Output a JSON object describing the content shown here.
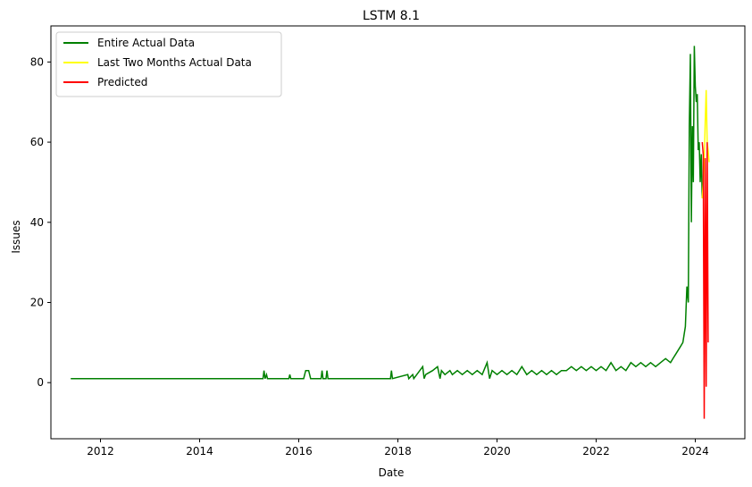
{
  "chart_data": {
    "type": "line",
    "title": "LSTM 8.1",
    "xlabel": "Date",
    "ylabel": "Issues",
    "xlim": [
      2011.0,
      2025.0
    ],
    "ylim": [
      -14,
      89
    ],
    "xticks": [
      2012,
      2014,
      2016,
      2018,
      2020,
      2022,
      2024
    ],
    "xtick_labels": [
      "2012",
      "2014",
      "2016",
      "2018",
      "2020",
      "2022",
      "2024"
    ],
    "yticks": [
      0,
      20,
      40,
      60,
      80
    ],
    "ytick_labels": [
      "0",
      "20",
      "40",
      "60",
      "80"
    ],
    "grid": false,
    "legend_position": "top-left",
    "series": [
      {
        "name": "Entire Actual Data",
        "color": "#008000",
        "x": [
          2011.4,
          2015.28,
          2015.3,
          2015.32,
          2015.35,
          2015.37,
          2015.8,
          2015.82,
          2015.84,
          2016.1,
          2016.14,
          2016.2,
          2016.24,
          2016.45,
          2016.47,
          2016.49,
          2016.55,
          2016.57,
          2016.59,
          2017.85,
          2017.87,
          2017.89,
          2018.2,
          2018.22,
          2018.3,
          2018.32,
          2018.5,
          2018.53,
          2018.56,
          2018.7,
          2018.8,
          2018.85,
          2018.88,
          2018.95,
          2019.05,
          2019.1,
          2019.2,
          2019.3,
          2019.4,
          2019.5,
          2019.6,
          2019.7,
          2019.8,
          2019.85,
          2019.9,
          2020.0,
          2020.1,
          2020.2,
          2020.3,
          2020.4,
          2020.5,
          2020.6,
          2020.7,
          2020.8,
          2020.9,
          2021.0,
          2021.1,
          2021.2,
          2021.3,
          2021.4,
          2021.5,
          2021.6,
          2021.7,
          2021.8,
          2021.9,
          2022.0,
          2022.1,
          2022.2,
          2022.3,
          2022.4,
          2022.5,
          2022.6,
          2022.7,
          2022.8,
          2022.9,
          2023.0,
          2023.1,
          2023.2,
          2023.3,
          2023.4,
          2023.5,
          2023.55,
          2023.6,
          2023.65,
          2023.7,
          2023.75,
          2023.8,
          2023.83,
          2023.86,
          2023.88,
          2023.9,
          2023.92,
          2023.94,
          2023.96,
          2023.98,
          2024.0,
          2024.02,
          2024.04,
          2024.06,
          2024.08,
          2024.1,
          2024.12,
          2024.14
        ],
        "y": [
          1,
          1,
          3,
          1,
          2,
          1,
          1,
          2,
          1,
          1,
          3,
          3,
          1,
          1,
          3,
          1,
          1,
          3,
          1,
          1,
          3,
          1,
          2,
          1,
          2,
          1,
          4,
          1,
          2,
          3,
          4,
          1,
          3,
          2,
          3,
          2,
          3,
          2,
          3,
          2,
          3,
          2,
          5,
          1,
          3,
          2,
          3,
          2,
          3,
          2,
          4,
          2,
          3,
          2,
          3,
          2,
          3,
          2,
          3,
          3,
          4,
          3,
          4,
          3,
          4,
          3,
          4,
          3,
          5,
          3,
          4,
          3,
          5,
          4,
          5,
          4,
          5,
          4,
          5,
          6,
          5,
          6,
          7,
          8,
          9,
          10,
          14,
          24,
          20,
          64,
          82,
          40,
          64,
          50,
          84,
          74,
          70,
          72,
          58,
          60,
          50,
          57,
          46
        ]
      },
      {
        "name": "Last Two Months Actual Data",
        "color": "#ffff00",
        "x": [
          2024.14,
          2024.16,
          2024.18,
          2024.2,
          2024.22,
          2024.24,
          2024.26,
          2024.28
        ],
        "y": [
          46,
          50,
          55,
          65,
          73,
          60,
          58,
          55
        ]
      },
      {
        "name": "Predicted",
        "color": "#ff0000",
        "x": [
          2024.14,
          2024.16,
          2024.18,
          2024.2,
          2024.22,
          2024.24,
          2024.26
        ],
        "y": [
          60,
          57,
          -9,
          56,
          -1,
          60,
          10
        ]
      }
    ]
  }
}
